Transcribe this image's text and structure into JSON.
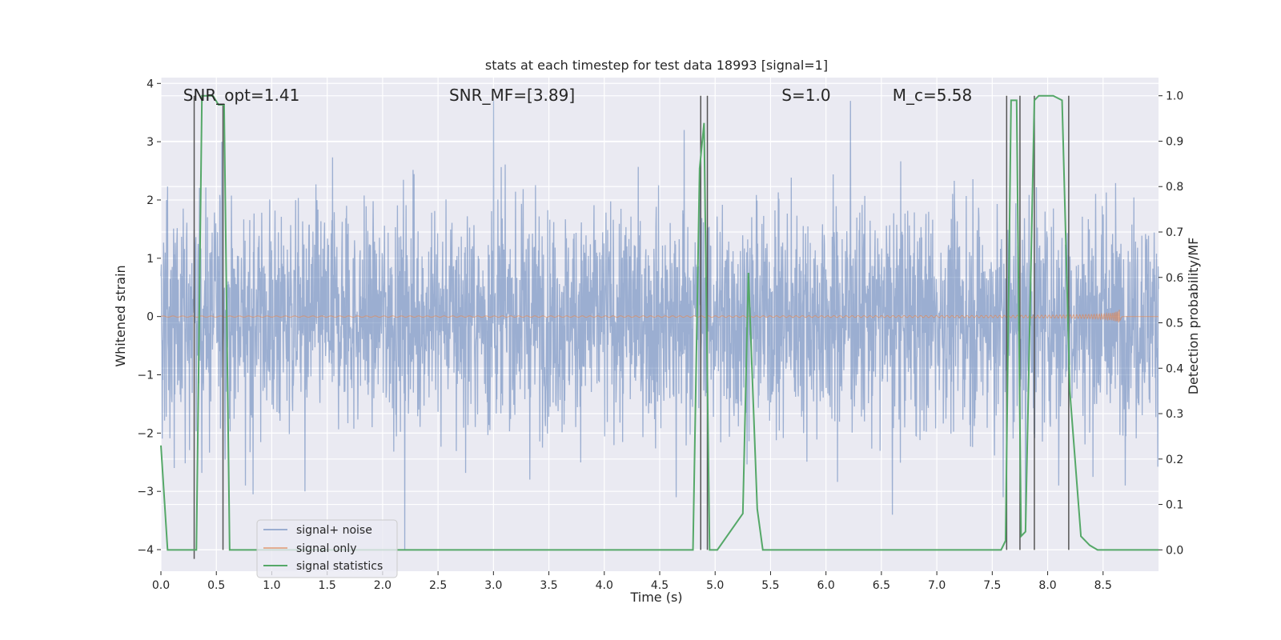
{
  "chart_data": {
    "type": "line",
    "title": "stats at each timestep for test data 18993 [signal=1]",
    "xlabel": "Time (s)",
    "ylabel_left": "Whitened strain",
    "ylabel_right": "Detection probability/MF",
    "xlim": [
      0,
      9.0
    ],
    "ylim_left": [
      -4.37,
      4.1
    ],
    "ylim_right": [
      -0.047,
      1.04
    ],
    "x_ticks": [
      0.0,
      0.5,
      1.0,
      1.5,
      2.0,
      2.5,
      3.0,
      3.5,
      4.0,
      4.5,
      5.0,
      5.5,
      6.0,
      6.5,
      7.0,
      7.5,
      8.0,
      8.5
    ],
    "x_tick_labels": [
      "0.0",
      "0.5",
      "1.0",
      "1.5",
      "2.0",
      "2.5",
      "3.0",
      "3.5",
      "4.0",
      "4.5",
      "5.0",
      "5.5",
      "6.0",
      "6.5",
      "7.0",
      "7.5",
      "8.0",
      "8.5"
    ],
    "y_ticks_left": [
      -4,
      -3,
      -2,
      -1,
      0,
      1,
      2,
      3,
      4
    ],
    "y_tick_labels_left": [
      "−4",
      "−3",
      "−2",
      "−1",
      "0",
      "1",
      "2",
      "3",
      "4"
    ],
    "y_ticks_right": [
      0.0,
      0.1,
      0.2,
      0.3,
      0.4,
      0.5,
      0.6,
      0.7,
      0.8,
      0.9,
      1.0
    ],
    "y_tick_labels_right": [
      "0.0",
      "0.1",
      "0.2",
      "0.3",
      "0.4",
      "0.5",
      "0.6",
      "0.7",
      "0.8",
      "0.9",
      "1.0"
    ],
    "grid": true,
    "legend_position": "lower-left",
    "annotations": [
      {
        "text": "SNR_opt=1.41",
        "x": 0.2,
        "y": 3.8
      },
      {
        "text": "SNR_MF=[3.89]",
        "x": 2.6,
        "y": 3.8
      },
      {
        "text": "S=1.0",
        "x": 5.6,
        "y": 3.8
      },
      {
        "text": "M_c=5.58",
        "x": 6.6,
        "y": 3.8
      }
    ],
    "series": [
      {
        "name": "signal+ noise",
        "color": "#4c72b0",
        "opacity": 0.5,
        "axis": "left",
        "duration": 9.0,
        "noise_sigma": 0.95,
        "peaks": [
          {
            "x": 0.05,
            "y": 2.0
          },
          {
            "x": 0.12,
            "y": -2.6
          },
          {
            "x": 0.55,
            "y": 3.0
          },
          {
            "x": 0.83,
            "y": -3.05
          },
          {
            "x": 1.3,
            "y": -3.0
          },
          {
            "x": 2.2,
            "y": -4.0
          },
          {
            "x": 3.0,
            "y": 3.7
          },
          {
            "x": 4.65,
            "y": -3.1
          },
          {
            "x": 4.72,
            "y": 3.2
          },
          {
            "x": 6.22,
            "y": 3.7
          },
          {
            "x": 6.6,
            "y": -3.4
          },
          {
            "x": 7.6,
            "y": -3.1
          },
          {
            "x": 7.8,
            "y": -3.5
          },
          {
            "x": 8.1,
            "y": -2.9
          }
        ]
      },
      {
        "name": "signal only",
        "color": "#dd8452",
        "opacity": 0.6,
        "axis": "left",
        "chirp_end": 8.65,
        "peak_amplitude": 0.14
      },
      {
        "name": "signal statistics",
        "color": "#55a868",
        "axis": "right",
        "x": [
          0.0,
          0.06,
          0.2,
          0.32,
          0.37,
          0.4,
          0.47,
          0.52,
          0.57,
          0.62,
          0.72,
          0.78,
          0.8,
          0.85,
          4.8,
          4.86,
          4.9,
          4.95,
          4.98,
          5.02,
          5.25,
          5.3,
          5.38,
          5.43,
          5.5,
          5.55,
          7.25,
          7.58,
          7.62,
          7.67,
          7.72,
          7.76,
          7.8,
          7.88,
          7.92,
          7.98,
          8.05,
          8.13,
          8.2,
          8.3,
          8.38,
          8.45,
          8.55,
          9.0
        ],
        "y": [
          0.23,
          0.0,
          0.0,
          0.0,
          1.0,
          1.0,
          1.0,
          0.98,
          0.98,
          0.0,
          0.0,
          0.0,
          0.0,
          0.0,
          0.0,
          0.84,
          0.94,
          0.0,
          0.0,
          0.0,
          0.08,
          0.61,
          0.09,
          0.0,
          0.0,
          0.0,
          0.0,
          0.0,
          0.02,
          0.99,
          0.99,
          0.03,
          0.04,
          0.99,
          1.0,
          1.0,
          1.0,
          0.99,
          0.35,
          0.03,
          0.01,
          0.0,
          0.0,
          0.0
        ]
      }
    ],
    "vertical_lines": [
      {
        "x": 0.3,
        "y_top": 1.0,
        "y_bottom": -0.02
      },
      {
        "x": 0.56,
        "y_top": 0.98,
        "y_bottom": 0.0
      },
      {
        "x": 4.87,
        "y_top": 1.0,
        "y_bottom": 0.0
      },
      {
        "x": 4.93,
        "y_top": 1.0,
        "y_bottom": 0.0
      },
      {
        "x": 7.63,
        "y_top": 1.0,
        "y_bottom": 0.0
      },
      {
        "x": 7.75,
        "y_top": 1.0,
        "y_bottom": 0.0
      },
      {
        "x": 7.88,
        "y_top": 1.0,
        "y_bottom": 0.0
      },
      {
        "x": 8.19,
        "y_top": 1.0,
        "y_bottom": 0.0
      }
    ]
  },
  "colors": {
    "axes_background": "#eaeaf2",
    "grid": "#ffffff",
    "text": "#262626",
    "vline": "#555555"
  }
}
